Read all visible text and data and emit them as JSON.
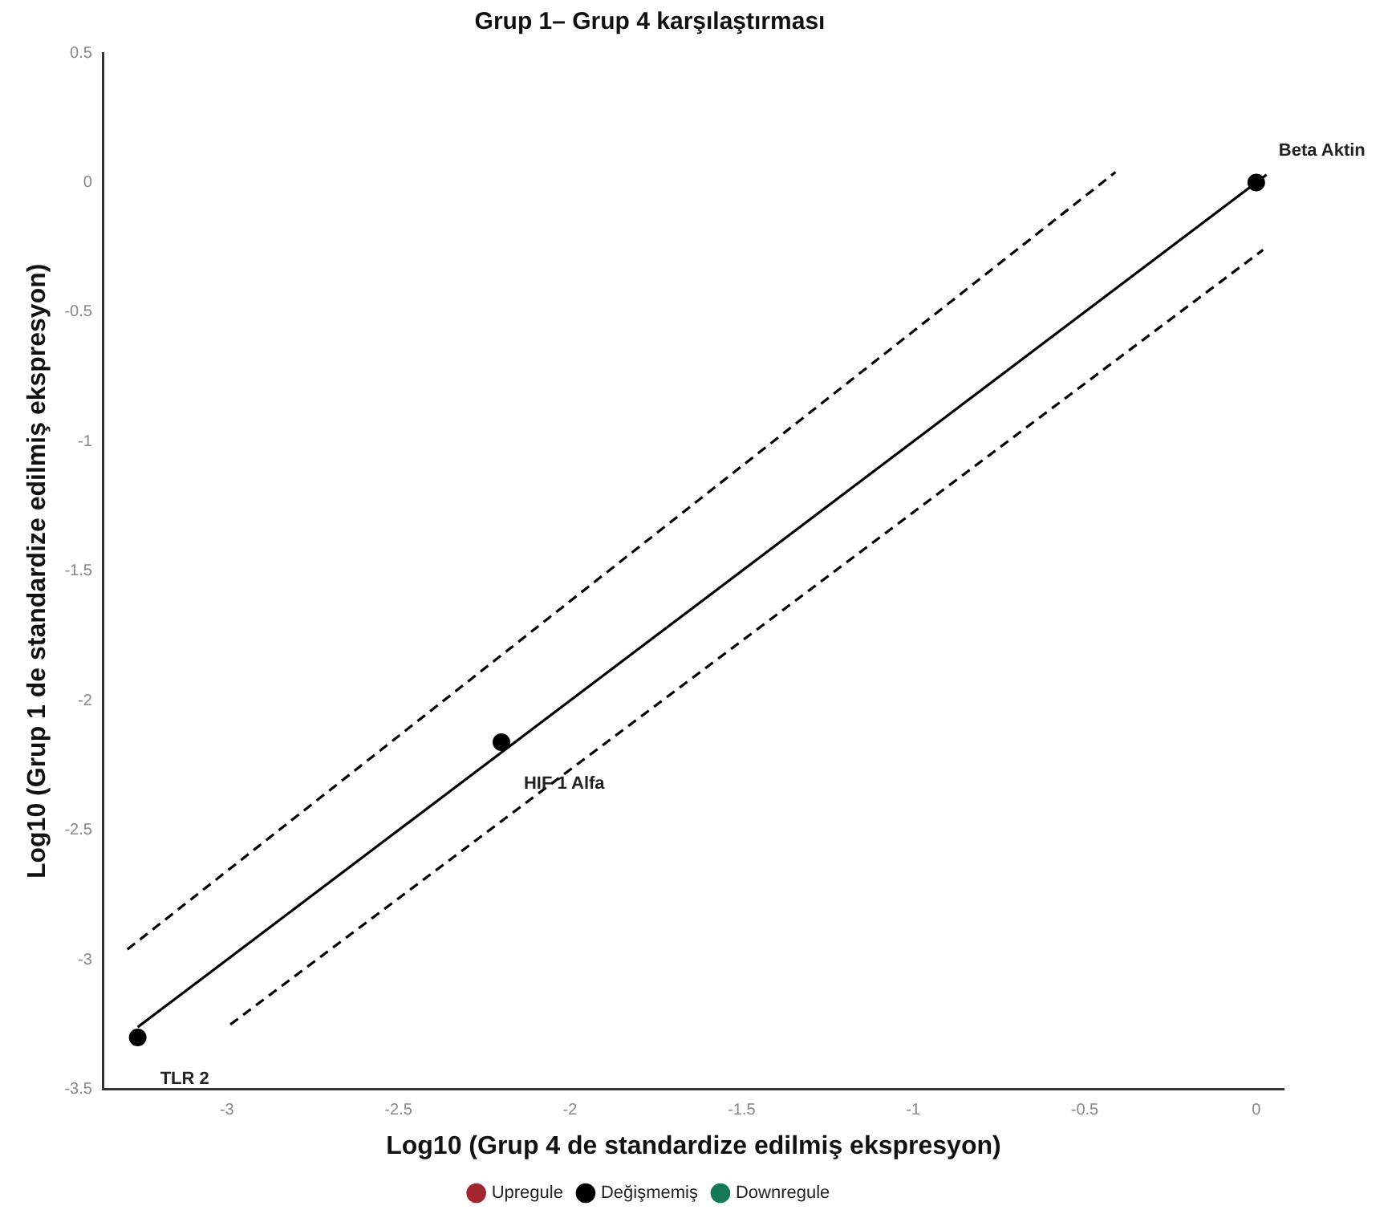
{
  "chart_data": {
    "type": "scatter",
    "title": "Grup 1– Grup 4 karşılaştırması",
    "xlabel": "Log10 (Grup 4 de standardize edilmiş ekspresyon)",
    "ylabel": "Log10 (Grup 1 de standardize edilmiş ekspresyon)",
    "xlim": [
      -3.36,
      0.08
    ],
    "xticks": [
      -3,
      -2.5,
      -2,
      -1.5,
      -1,
      -0.5,
      0
    ],
    "ylim": [
      -3.5,
      0.5
    ],
    "yticks": [
      -3.5,
      -3,
      -2.5,
      -2,
      -1.5,
      -1,
      -0.5,
      0,
      0.5
    ],
    "grid": false,
    "legend": "bottom",
    "marker": "circle",
    "series": [
      {
        "name": "Upregule",
        "color": "#a3262e"
      },
      {
        "name": "Değişmemiş",
        "color": "#000000",
        "x": [
          -3.26,
          -2.2,
          0
        ],
        "values": [
          -3.3,
          -2.16,
          0
        ]
      },
      {
        "name": "Downregule",
        "color": "#127a55"
      },
      {
        "type": "line",
        "color": "#000000",
        "line_style": "solid",
        "marker": "none",
        "x": [
          -3.26,
          0.03
        ],
        "values": [
          -3.26,
          0.03
        ]
      },
      {
        "type": "line",
        "color": "#000000",
        "line_style": "dashed",
        "marker": "none",
        "x": [
          -3.29,
          -0.41
        ],
        "values": [
          -2.96,
          0.04
        ]
      },
      {
        "type": "line",
        "color": "#000000",
        "line_style": "dashed",
        "marker": "none",
        "x": [
          -2.99,
          0.02
        ],
        "values": [
          -3.25,
          -0.26
        ]
      }
    ],
    "annotations": [
      {
        "text": "Beta Aktin",
        "x": 0,
        "y": 0
      },
      {
        "text": "HIF 1 Alfa",
        "x": -2.2,
        "y": -2.16
      },
      {
        "text": "TLR 2",
        "x": -3.26,
        "y": -3.3
      }
    ]
  }
}
